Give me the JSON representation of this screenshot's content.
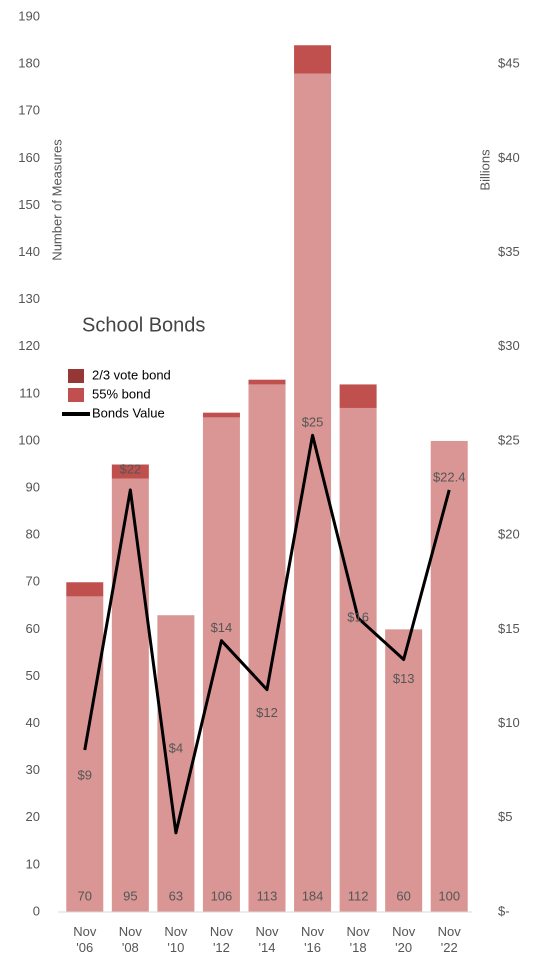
{
  "chart_data": {
    "type": "bar",
    "title": "School Bonds",
    "y_label": "Number of Measures",
    "y2_label": "Billions",
    "categories": [
      "Nov '06",
      "Nov '08",
      "Nov '10",
      "Nov '12",
      "Nov '14",
      "Nov '16",
      "Nov '18",
      "Nov '20",
      "Nov '22"
    ],
    "series": [
      {
        "name": "2/3 vote bond",
        "color": "#c0504d",
        "type": "bar",
        "values": [
          3,
          3,
          0,
          1,
          1,
          6,
          5,
          0,
          0
        ]
      },
      {
        "name": "55% bond",
        "color": "#d99694",
        "type": "bar",
        "values": [
          67,
          92,
          63,
          105,
          112,
          178,
          107,
          60,
          100
        ]
      },
      {
        "name": "Bonds Value",
        "color": "#000000",
        "type": "line",
        "axis": "y2",
        "values": [
          8.6,
          22.4,
          4.2,
          14.4,
          11.8,
          25.3,
          15.6,
          13.4,
          22.4
        ],
        "value_labels": [
          "$9",
          "$22",
          "$4",
          "$14",
          "$12",
          "$25",
          "$16",
          "$13",
          "$22.4"
        ]
      }
    ],
    "totals": [
      70,
      95,
      63,
      106,
      113,
      184,
      112,
      60,
      100
    ],
    "ylim": [
      0,
      190
    ],
    "yticks": [
      0,
      10,
      20,
      30,
      40,
      50,
      60,
      70,
      80,
      90,
      100,
      110,
      120,
      130,
      140,
      150,
      160,
      170,
      180,
      190
    ],
    "y2lim": [
      0,
      47.5
    ],
    "y2ticks": [
      {
        "value": 0,
        "label": "$-"
      },
      {
        "value": 5,
        "label": "$5"
      },
      {
        "value": 10,
        "label": "$10"
      },
      {
        "value": 15,
        "label": "$15"
      },
      {
        "value": 20,
        "label": "$20"
      },
      {
        "value": 25,
        "label": "$25"
      },
      {
        "value": 30,
        "label": "$30"
      },
      {
        "value": 35,
        "label": "$35"
      },
      {
        "value": 40,
        "label": "$40"
      },
      {
        "value": 45,
        "label": "$45"
      }
    ],
    "grid": false,
    "legend": "upper left"
  }
}
